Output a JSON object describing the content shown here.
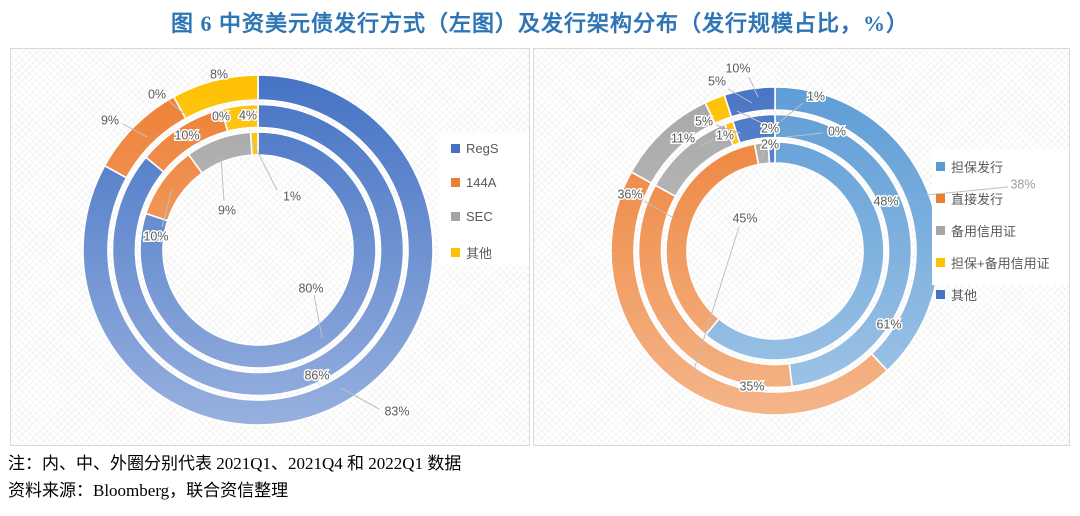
{
  "title": "图 6 中资美元债发行方式（左图）及发行架构分布（发行规模占比，%）",
  "title_color": "#2E75B6",
  "notes": {
    "line1": "注：内、中、外圈分别代表 2021Q1、2021Q4 和 2022Q1 数据",
    "line2": "资料来源：Bloomberg，联合资信整理"
  },
  "chart_data": [
    {
      "type": "pie",
      "subtype": "multi-ring-donut",
      "title": "中资美元债发行方式（左图）",
      "unit": "%",
      "legend_position": "right",
      "legend": [
        "RegS",
        "144A",
        "SEC",
        "其他"
      ],
      "colors": [
        "#4472C4",
        "#ED7D31",
        "#A5A5A5",
        "#FFC000"
      ],
      "ring_note": "内圈=2021Q1, 中圈=2021Q4, 外圈=2022Q1",
      "rings": [
        {
          "period": "2021Q1",
          "position": "inner",
          "values": [
            80,
            10,
            9,
            1
          ]
        },
        {
          "period": "2021Q4",
          "position": "middle",
          "values": [
            86,
            10,
            0,
            4
          ]
        },
        {
          "period": "2022Q1",
          "position": "outer",
          "values": [
            83,
            9,
            0,
            8
          ]
        }
      ]
    },
    {
      "type": "pie",
      "subtype": "multi-ring-donut",
      "title": "发行架构分布（右图）",
      "unit": "%",
      "legend_position": "right",
      "legend": [
        "担保发行",
        "直接发行",
        "备用信用证",
        "担保+备用信用证",
        "其他"
      ],
      "colors": [
        "#5B9BD5",
        "#ED7D31",
        "#A5A5A5",
        "#FFC000",
        "#4472C4"
      ],
      "ring_note": "内圈=2021Q1, 中圈=2021Q4, 外圈=2022Q1",
      "rings": [
        {
          "period": "2021Q1",
          "position": "inner",
          "values": [
            61,
            36,
            2,
            0,
            1
          ]
        },
        {
          "period": "2021Q4",
          "position": "middle",
          "values": [
            48,
            35,
            11,
            1,
            5
          ]
        },
        {
          "period": "2022Q1",
          "position": "outer",
          "values": [
            38,
            45,
            10,
            2,
            5
          ]
        }
      ]
    }
  ]
}
